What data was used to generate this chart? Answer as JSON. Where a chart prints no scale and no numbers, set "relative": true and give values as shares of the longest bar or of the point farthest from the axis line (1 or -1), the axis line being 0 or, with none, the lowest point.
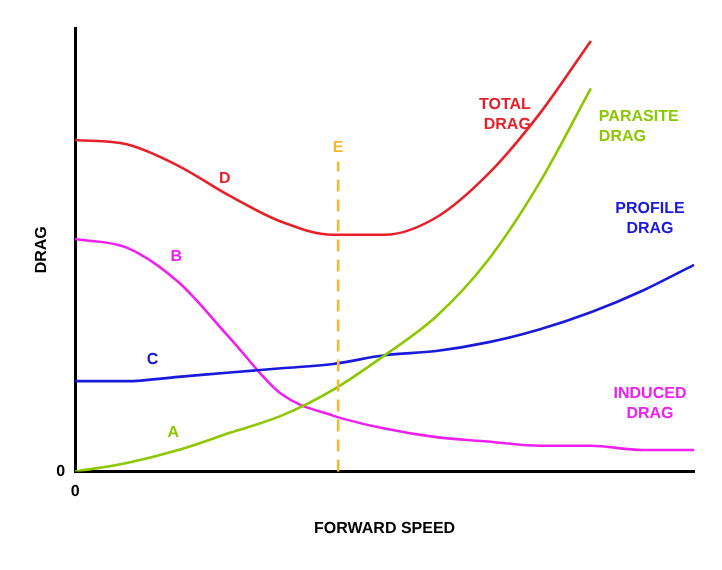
{
  "chart_data": {
    "type": "line",
    "relative": true,
    "xlabel": "FORWARD SPEED",
    "ylabel": "DRAG",
    "categories": [
      null,
      null,
      null,
      null,
      null,
      null,
      null,
      null,
      null,
      null,
      null,
      null,
      null
    ],
    "series": [
      {
        "name": "TOTAL DRAG",
        "color": "#e8202a",
        "values": [
          0.77,
          0.76,
          0.71,
          0.64,
          0.58,
          0.55,
          0.55,
          0.59,
          0.69,
          0.83,
          1.0,
          null,
          null
        ]
      },
      {
        "name": "PARASITE DRAG",
        "color": "#8cc800",
        "values": [
          0.0,
          0.02,
          0.05,
          0.09,
          0.13,
          0.19,
          0.27,
          0.36,
          0.49,
          0.67,
          0.89,
          null,
          null
        ]
      },
      {
        "name": "PROFILE DRAG",
        "color": "#1a1adc",
        "values": [
          0.21,
          0.21,
          0.22,
          0.23,
          0.24,
          0.25,
          0.27,
          0.28,
          0.3,
          0.33,
          0.37,
          0.42,
          0.48
        ]
      },
      {
        "name": "INDUCED DRAG",
        "color": "#f020f0",
        "values": [
          0.54,
          0.52,
          0.44,
          0.31,
          0.18,
          0.13,
          0.1,
          0.08,
          0.07,
          0.06,
          0.06,
          0.05,
          0.05
        ]
      }
    ],
    "annotations": [
      "0",
      "0",
      "A",
      "B",
      "C",
      "D",
      "E"
    ],
    "legend": false,
    "marker": "none",
    "line_style": "solid"
  }
}
